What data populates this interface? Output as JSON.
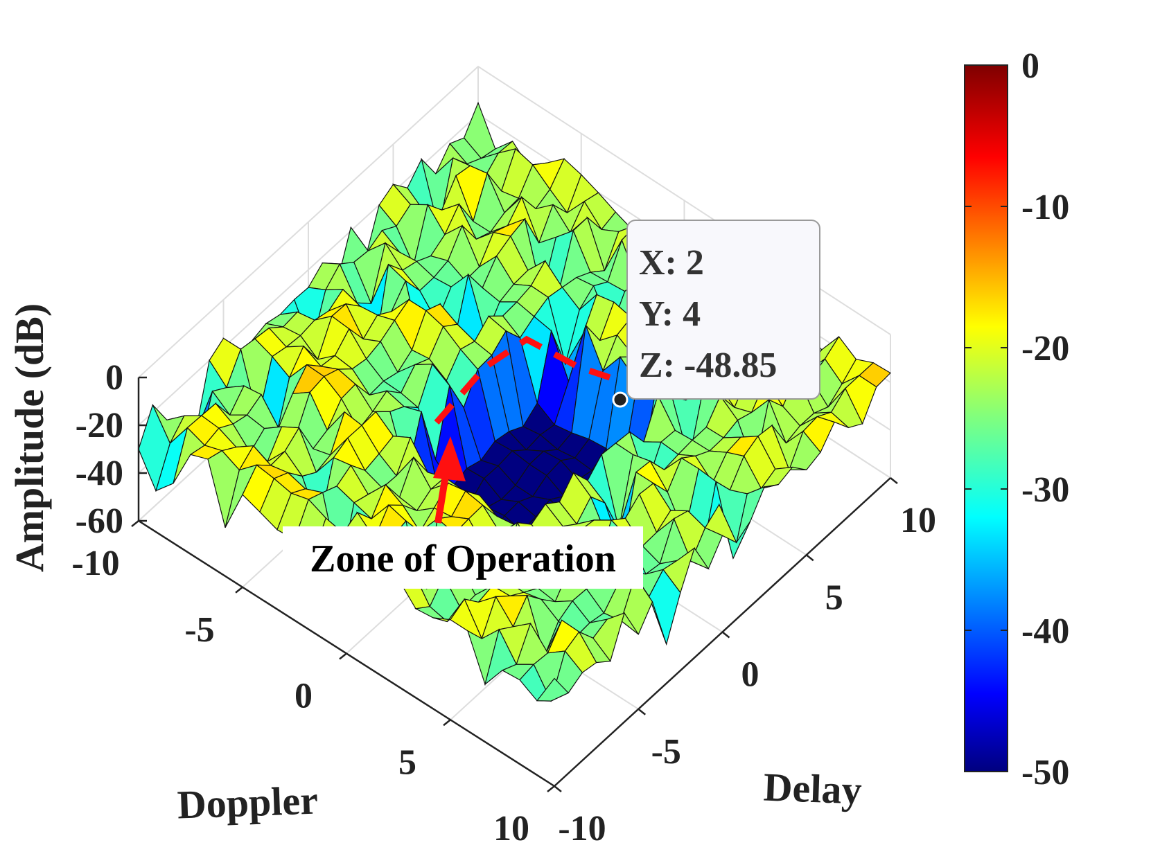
{
  "chart_data": {
    "type": "surface",
    "title": "",
    "xlabel": "Doppler",
    "ylabel": "Delay",
    "zlabel": "Amplitude (dB)",
    "xlim": [
      -10,
      10
    ],
    "ylim": [
      -10,
      10
    ],
    "zlim": [
      -60,
      0
    ],
    "xticks": [
      "-10",
      "-5",
      "0",
      "5",
      "10"
    ],
    "yticks": [
      "-10",
      "-5",
      "0",
      "5",
      "10"
    ],
    "zticks": [
      "0",
      "-20",
      "-40",
      "-60"
    ],
    "grid": true,
    "colormap": "jet",
    "colorbar": {
      "min": -50,
      "max": 0,
      "ticks": [
        "0",
        "-10",
        "-20",
        "-30",
        "-40",
        "-50"
      ]
    },
    "datatip": {
      "x_label": "X: 2",
      "y_label": "Y: 4",
      "z_label": "Z: -48.85",
      "x": 2,
      "y": 4,
      "z": -48.85
    },
    "annotation": {
      "text": "Zone of Operation",
      "color": "#ff0000"
    },
    "surface_description_values": {
      "background_level_db": -22,
      "null_zone_level_db": -50,
      "null_zone_doppler_range": [
        -2,
        4
      ],
      "null_zone_delay_range": [
        -4,
        4
      ]
    }
  }
}
